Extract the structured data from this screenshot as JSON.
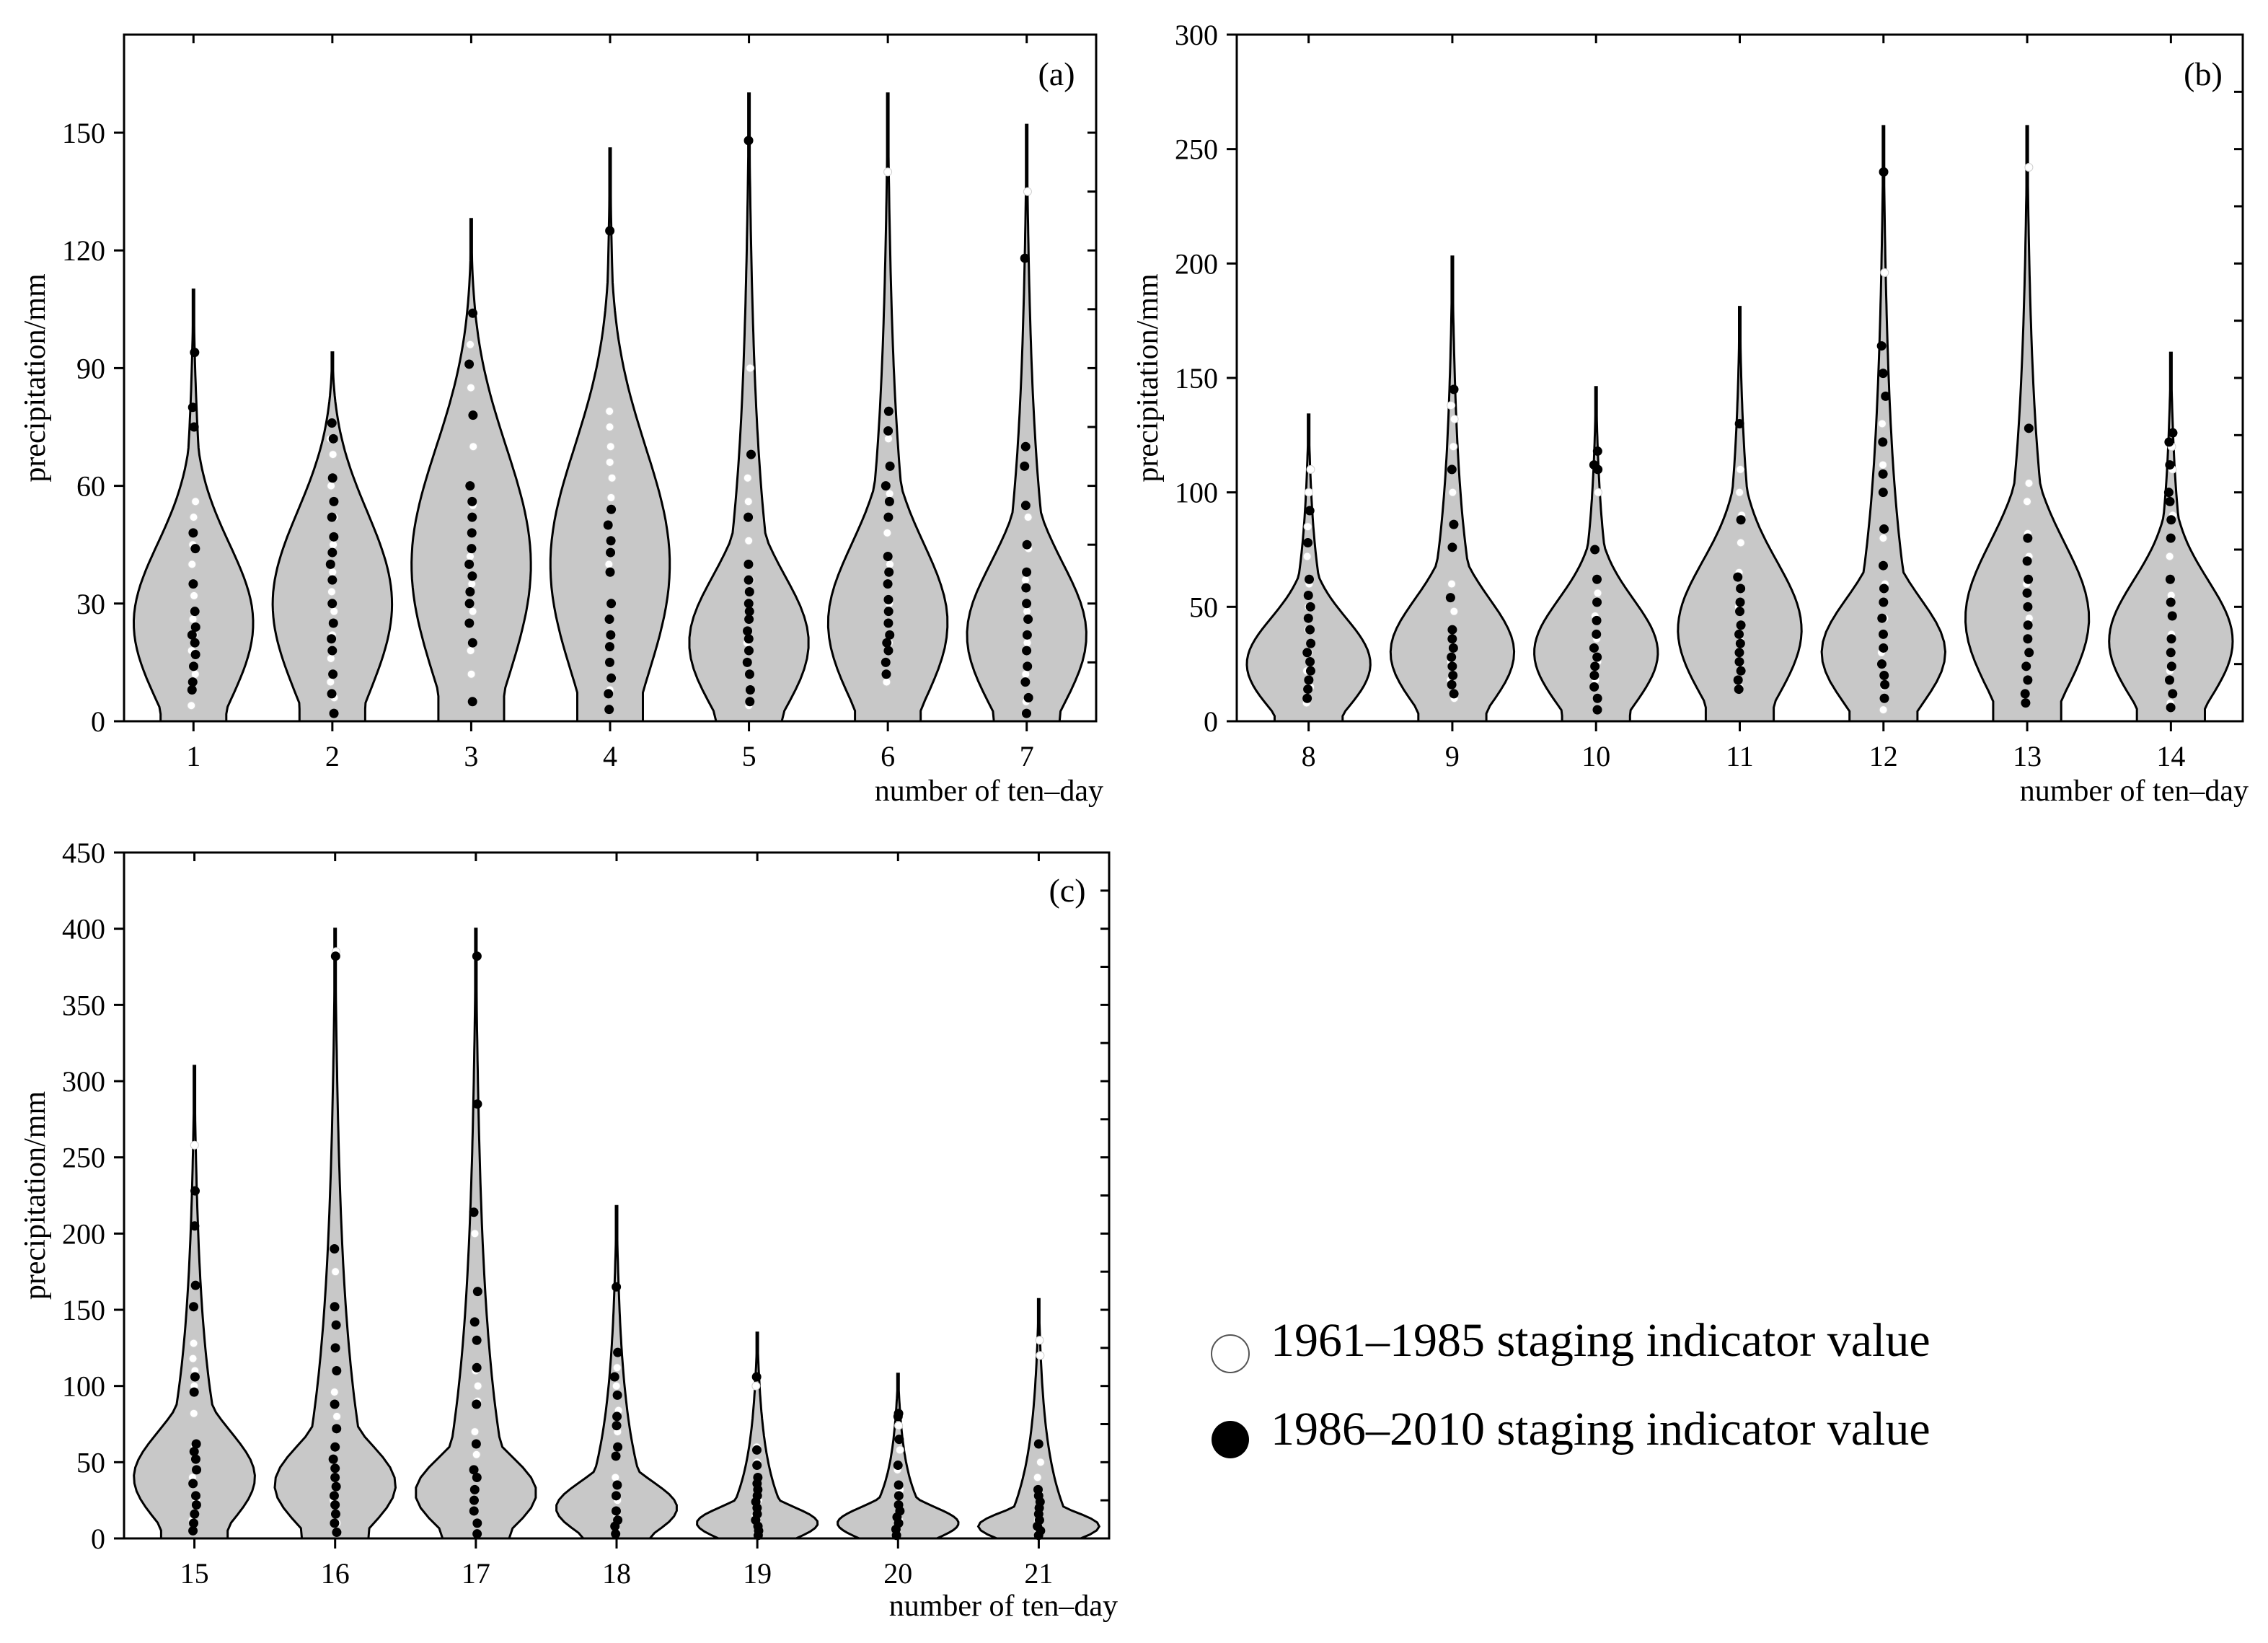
{
  "chart_data": [
    {
      "type": "violin",
      "panel": "(a)",
      "ylabel": "precipitation/mm",
      "xlabel": "number of ten–day",
      "ylim": [
        0,
        175
      ],
      "yticks": [
        0,
        30,
        60,
        90,
        120,
        150
      ],
      "violins": [
        {
          "category": "1",
          "max": 110,
          "mode": 25,
          "early": [
            4,
            12,
            18,
            22,
            26,
            28,
            32,
            40,
            45,
            52,
            56
          ],
          "late": [
            8,
            10,
            14,
            17,
            20,
            22,
            24,
            28,
            35,
            44,
            48,
            75,
            80,
            94
          ]
        },
        {
          "category": "2",
          "max": 94,
          "mode": 30,
          "early": [
            6,
            10,
            16,
            22,
            28,
            33,
            38,
            45,
            52,
            60,
            68,
            72
          ],
          "late": [
            2,
            7,
            12,
            18,
            21,
            25,
            30,
            36,
            40,
            43,
            47,
            52,
            56,
            62,
            72,
            76
          ]
        },
        {
          "category": "3",
          "max": 128,
          "mode": 40,
          "early": [
            12,
            18,
            28,
            35,
            42,
            55,
            70,
            85,
            96
          ],
          "late": [
            5,
            20,
            25,
            30,
            33,
            37,
            40,
            44,
            48,
            52,
            56,
            60,
            78,
            91,
            104
          ]
        },
        {
          "category": "4",
          "max": 146,
          "mode": 40,
          "early": [
            8,
            15,
            30,
            40,
            50,
            57,
            62,
            66,
            70,
            75,
            79
          ],
          "late": [
            3,
            7,
            11,
            15,
            19,
            22,
            26,
            30,
            38,
            43,
            46,
            50,
            54,
            125
          ]
        },
        {
          "category": "5",
          "max": 160,
          "mode": 20,
          "early": [
            4,
            12,
            20,
            28,
            36,
            46,
            56,
            62,
            90
          ],
          "late": [
            5,
            8,
            12,
            15,
            18,
            21,
            23,
            26,
            28,
            30,
            33,
            36,
            40,
            52,
            68,
            148
          ]
        },
        {
          "category": "6",
          "max": 160,
          "mode": 25,
          "early": [
            10,
            20,
            30,
            40,
            48,
            58,
            72,
            140
          ],
          "late": [
            12,
            15,
            18,
            20,
            22,
            25,
            28,
            31,
            35,
            38,
            42,
            52,
            56,
            60,
            65,
            74,
            79
          ]
        },
        {
          "category": "7",
          "max": 152,
          "mode": 22,
          "early": [
            5,
            12,
            20,
            28,
            36,
            44,
            52,
            135
          ],
          "late": [
            2,
            6,
            10,
            14,
            18,
            22,
            26,
            30,
            34,
            38,
            45,
            55,
            65,
            70,
            118
          ]
        }
      ]
    },
    {
      "type": "violin",
      "panel": "(b)",
      "ylabel": "precipitation/mm",
      "xlabel": "number of ten–day",
      "ylim": [
        0,
        300
      ],
      "yticks": [
        0,
        50,
        100,
        150,
        200,
        250,
        300
      ],
      "violins": [
        {
          "category": "8",
          "max": 134,
          "mode": 25,
          "early": [
            8,
            15,
            22,
            30,
            40,
            50,
            60,
            72,
            85,
            100,
            110
          ],
          "late": [
            10,
            14,
            18,
            22,
            26,
            30,
            34,
            40,
            45,
            50,
            55,
            62,
            78,
            92
          ]
        },
        {
          "category": "9",
          "max": 203,
          "mode": 30,
          "early": [
            10,
            18,
            26,
            36,
            48,
            60,
            100,
            120,
            132,
            138
          ],
          "late": [
            12,
            16,
            20,
            24,
            28,
            32,
            36,
            40,
            54,
            76,
            86,
            110,
            145
          ]
        },
        {
          "category": "10",
          "max": 146,
          "mode": 30,
          "early": [
            10,
            18,
            26,
            36,
            46,
            56,
            100
          ],
          "late": [
            5,
            10,
            15,
            20,
            24,
            28,
            32,
            38,
            44,
            52,
            62,
            75,
            110,
            112,
            118
          ]
        },
        {
          "category": "11",
          "max": 181,
          "mode": 40,
          "early": [
            15,
            25,
            35,
            50,
            65,
            78,
            90,
            100,
            110
          ],
          "late": [
            14,
            18,
            22,
            26,
            30,
            34,
            38,
            42,
            48,
            52,
            58,
            63,
            88,
            130
          ]
        },
        {
          "category": "12",
          "max": 260,
          "mode": 30,
          "early": [
            5,
            15,
            30,
            45,
            60,
            80,
            112,
            130,
            196
          ],
          "late": [
            10,
            16,
            20,
            25,
            32,
            38,
            45,
            52,
            58,
            68,
            84,
            100,
            108,
            122,
            142,
            152,
            164,
            240
          ]
        },
        {
          "category": "13",
          "max": 260,
          "mode": 45,
          "early": [
            8,
            18,
            30,
            45,
            60,
            72,
            82,
            96,
            104,
            242
          ],
          "late": [
            8,
            12,
            18,
            24,
            30,
            36,
            42,
            50,
            56,
            62,
            70,
            80,
            128
          ]
        },
        {
          "category": "14",
          "max": 161,
          "mode": 35,
          "early": [
            8,
            22,
            38,
            55,
            72,
            90,
            110,
            120
          ],
          "late": [
            6,
            12,
            18,
            24,
            30,
            36,
            46,
            52,
            62,
            80,
            88,
            96,
            100,
            112,
            122,
            126
          ]
        }
      ]
    },
    {
      "type": "violin",
      "panel": "(c)",
      "ylabel": "precipitation/mm",
      "xlabel": "number of ten–day",
      "ylim": [
        0,
        450
      ],
      "yticks": [
        0,
        50,
        100,
        150,
        200,
        250,
        300,
        350,
        400,
        450
      ],
      "violins": [
        {
          "category": "15",
          "max": 310,
          "mode": 40,
          "early": [
            12,
            25,
            40,
            60,
            82,
            100,
            110,
            118,
            128,
            258
          ],
          "late": [
            5,
            10,
            16,
            22,
            28,
            36,
            45,
            52,
            57,
            62,
            96,
            106,
            152,
            166,
            205,
            228
          ]
        },
        {
          "category": "16",
          "max": 400,
          "mode": 35,
          "early": [
            10,
            25,
            40,
            60,
            80,
            96,
            175,
            385
          ],
          "late": [
            4,
            10,
            16,
            22,
            28,
            34,
            40,
            46,
            52,
            60,
            72,
            88,
            110,
            125,
            140,
            152,
            190,
            382
          ]
        },
        {
          "category": "17",
          "max": 400,
          "mode": 30,
          "early": [
            10,
            25,
            40,
            55,
            70,
            90,
            100,
            110,
            200
          ],
          "late": [
            3,
            10,
            18,
            25,
            32,
            40,
            45,
            62,
            88,
            112,
            130,
            142,
            162,
            214,
            285,
            382
          ]
        },
        {
          "category": "18",
          "max": 218,
          "mode": 20,
          "early": [
            5,
            15,
            25,
            40,
            55,
            70,
            84,
            100,
            112
          ],
          "late": [
            3,
            8,
            12,
            18,
            28,
            35,
            54,
            60,
            74,
            80,
            94,
            106,
            122,
            165
          ]
        },
        {
          "category": "19",
          "max": 135,
          "mode": 10,
          "early": [
            3,
            8,
            15,
            25,
            40,
            50,
            60,
            100
          ],
          "late": [
            2,
            5,
            8,
            12,
            16,
            20,
            24,
            28,
            32,
            36,
            40,
            48,
            58,
            106
          ]
        },
        {
          "category": "20",
          "max": 108,
          "mode": 10,
          "early": [
            5,
            12,
            20,
            32,
            45,
            58,
            74
          ],
          "late": [
            2,
            6,
            10,
            14,
            18,
            22,
            28,
            35,
            48,
            65,
            80,
            82
          ]
        },
        {
          "category": "21",
          "max": 157,
          "mode": 8,
          "early": [
            5,
            12,
            20,
            30,
            40,
            50,
            120,
            130
          ],
          "late": [
            2,
            5,
            8,
            12,
            16,
            20,
            24,
            28,
            32,
            62
          ]
        }
      ]
    }
  ],
  "legend": {
    "early_label": "1961–1985 staging indicator value",
    "late_label": "1986–2010 staging indicator value"
  }
}
